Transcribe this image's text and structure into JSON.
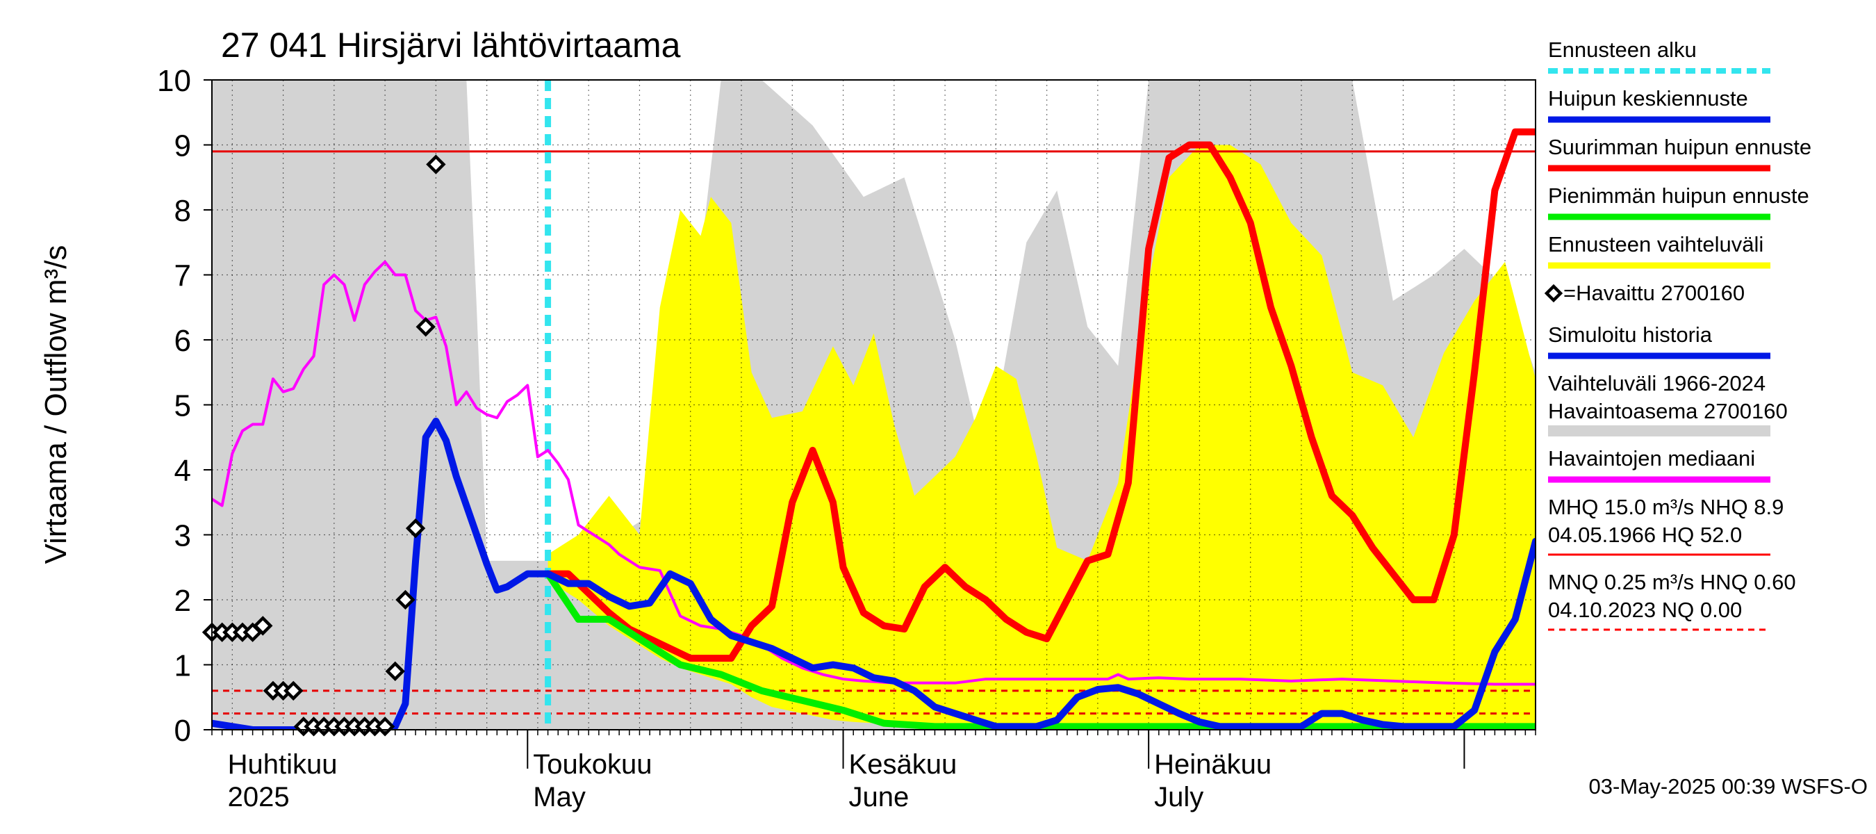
{
  "chart_data": {
    "type": "line",
    "title": "27 041 Hirsjärvi lähtövirtaama",
    "ylabel": "Virtaama / Outflow    m³/s",
    "ylim": [
      0,
      10
    ],
    "yticks": [
      "0",
      "1",
      "2",
      "3",
      "4",
      "5",
      "6",
      "7",
      "8",
      "9",
      "10"
    ],
    "xlim": [
      "2025-03-31",
      "2025-08-08"
    ],
    "month_labels": [
      {
        "date": "2025-04-01",
        "fi": "Huhtikuu",
        "en": "2025"
      },
      {
        "date": "2025-05-01",
        "fi": "Toukokuu",
        "en": "May"
      },
      {
        "date": "2025-06-01",
        "fi": "Kesäkuu",
        "en": "June"
      },
      {
        "date": "2025-07-01",
        "fi": "Heinäkuu",
        "en": "July"
      }
    ],
    "forecast_start": "2025-05-03",
    "reference_lines": {
      "nhq": 8.9,
      "mnq": 0.25,
      "hnq": 0.6
    },
    "grid": true,
    "legend_position": "right",
    "legend": [
      {
        "label": "Ennusteen alku",
        "color": "#33e5ee",
        "style": "dashed"
      },
      {
        "label": "Huipun keskiennuste",
        "color": "#0018e6",
        "style": "line"
      },
      {
        "label": "Suurimman huipun ennuste",
        "color": "#ff0000",
        "style": "line"
      },
      {
        "label": "Pienimmän huipun ennuste",
        "color": "#00ee00",
        "style": "line"
      },
      {
        "label": "Ennusteen vaihteluväli",
        "color": "#ffff00",
        "style": "line"
      },
      {
        "label": "=Havaittu 2700160",
        "color": "#000000",
        "style": "diamond"
      },
      {
        "label": "Simuloitu historia",
        "color": "#0018e6",
        "style": "line"
      },
      {
        "label": "Vaihteluväli 1966-2024",
        "label2": " Havaintoasema 2700160",
        "color": "#d3d3d3",
        "style": "band"
      },
      {
        "label": "Havaintojen mediaani",
        "color": "#ff00ff",
        "style": "line"
      },
      {
        "label": "MHQ 15.0 m³/s NHQ  8.9",
        "label2": "04.05.1966 HQ 52.0",
        "color": "#ff0000",
        "style": "thin"
      },
      {
        "label": "MNQ 0.25 m³/s HNQ 0.60",
        "label2": "04.10.2023 NQ 0.00",
        "color": "#ff0000",
        "style": "dotted"
      }
    ],
    "footer": "03-May-2025 00:39 WSFS-O",
    "series": [
      {
        "name": "Vaihteluväli 1966-2024",
        "kind": "band",
        "x": [
          "2025-03-31",
          "2025-04-04",
          "2025-04-25",
          "2025-04-26",
          "2025-04-27",
          "2025-05-03",
          "2025-05-08",
          "2025-05-12",
          "2025-05-16",
          "2025-05-20",
          "2025-05-24",
          "2025-05-29",
          "2025-06-03",
          "2025-06-07",
          "2025-06-09",
          "2025-06-12",
          "2025-06-15",
          "2025-06-19",
          "2025-06-22",
          "2025-06-25",
          "2025-06-28",
          "2025-07-01",
          "2025-07-05",
          "2025-07-09",
          "2025-07-13",
          "2025-07-17",
          "2025-07-21",
          "2025-07-25",
          "2025-07-29",
          "2025-08-01",
          "2025-08-05",
          "2025-08-08"
        ],
        "low": [
          0,
          0,
          0,
          0,
          0,
          0,
          0,
          0,
          0,
          0,
          0,
          0,
          0,
          0,
          0,
          0,
          0,
          0,
          0,
          0,
          0,
          0,
          0,
          0,
          0,
          0,
          0,
          0,
          0,
          0,
          0,
          0
        ],
        "high": [
          10,
          10,
          10,
          6.5,
          2.6,
          2.6,
          2.8,
          3.2,
          4.6,
          10,
          10,
          9.3,
          8.2,
          8.5,
          7.5,
          6.0,
          4.0,
          7.5,
          8.3,
          6.2,
          5.6,
          10,
          10,
          10,
          10,
          10,
          10,
          6.6,
          7.0,
          7.4,
          6.8,
          5.5
        ]
      },
      {
        "name": "Ennusteen vaihteluväli",
        "kind": "band",
        "x": [
          "2025-05-03",
          "2025-05-06",
          "2025-05-09",
          "2025-05-12",
          "2025-05-14",
          "2025-05-16",
          "2025-05-18",
          "2025-05-19",
          "2025-05-21",
          "2025-05-23",
          "2025-05-25",
          "2025-05-28",
          "2025-05-31",
          "2025-06-02",
          "2025-06-04",
          "2025-06-06",
          "2025-06-08",
          "2025-06-10",
          "2025-06-12",
          "2025-06-14",
          "2025-06-16",
          "2025-06-18",
          "2025-06-20",
          "2025-06-22",
          "2025-06-25",
          "2025-06-28",
          "2025-07-01",
          "2025-07-03",
          "2025-07-06",
          "2025-07-09",
          "2025-07-12",
          "2025-07-15",
          "2025-07-18",
          "2025-07-21",
          "2025-07-24",
          "2025-07-27",
          "2025-07-30",
          "2025-08-02",
          "2025-08-05",
          "2025-08-08"
        ],
        "low": [
          2.3,
          2.0,
          1.6,
          1.3,
          1.1,
          0.95,
          0.85,
          0.8,
          0.7,
          0.5,
          0.35,
          0.25,
          0.15,
          0.12,
          0.1,
          0.08,
          0.07,
          0.07,
          0.06,
          0.06,
          0.06,
          0.06,
          0.06,
          0.06,
          0.06,
          0.06,
          0.06,
          0.06,
          0.06,
          0.06,
          0.06,
          0.06,
          0.06,
          0.06,
          0.06,
          0.06,
          0.06,
          0.06,
          0.06,
          0.06
        ],
        "high": [
          2.7,
          3.0,
          3.6,
          3.0,
          6.5,
          8.0,
          7.6,
          8.2,
          7.8,
          5.5,
          4.8,
          4.9,
          5.9,
          5.3,
          6.1,
          4.7,
          3.6,
          3.9,
          4.2,
          4.8,
          5.6,
          5.4,
          4.2,
          2.8,
          2.6,
          3.8,
          6.9,
          8.5,
          9.0,
          9.0,
          8.7,
          7.8,
          7.3,
          5.5,
          5.3,
          4.5,
          5.8,
          6.6,
          7.2,
          5.4
        ]
      },
      {
        "name": "Havaintojen mediaani",
        "kind": "line",
        "x": [
          "2025-03-31",
          "2025-04-01",
          "2025-04-02",
          "2025-04-03",
          "2025-04-04",
          "2025-04-05",
          "2025-04-06",
          "2025-04-07",
          "2025-04-08",
          "2025-04-09",
          "2025-04-10",
          "2025-04-11",
          "2025-04-12",
          "2025-04-13",
          "2025-04-14",
          "2025-04-15",
          "2025-04-16",
          "2025-04-17",
          "2025-04-18",
          "2025-04-19",
          "2025-04-20",
          "2025-04-21",
          "2025-04-22",
          "2025-04-23",
          "2025-04-24",
          "2025-04-25",
          "2025-04-26",
          "2025-04-27",
          "2025-04-28",
          "2025-04-29",
          "2025-04-30",
          "2025-05-01",
          "2025-05-02",
          "2025-05-03",
          "2025-05-04",
          "2025-05-05",
          "2025-05-06",
          "2025-05-07",
          "2025-05-08",
          "2025-05-09",
          "2025-05-10",
          "2025-05-12",
          "2025-05-14",
          "2025-05-16",
          "2025-05-18",
          "2025-05-20",
          "2025-05-22",
          "2025-05-24",
          "2025-05-26",
          "2025-05-28",
          "2025-05-30",
          "2025-06-01",
          "2025-06-03",
          "2025-06-06",
          "2025-06-09",
          "2025-06-12",
          "2025-06-15",
          "2025-06-18",
          "2025-06-21",
          "2025-06-24",
          "2025-06-27",
          "2025-06-28",
          "2025-06-29",
          "2025-07-02",
          "2025-07-05",
          "2025-07-10",
          "2025-07-15",
          "2025-07-20",
          "2025-07-25",
          "2025-07-30",
          "2025-08-04",
          "2025-08-08"
        ],
        "y": [
          3.55,
          3.45,
          4.25,
          4.6,
          4.7,
          4.7,
          5.4,
          5.2,
          5.25,
          5.55,
          5.75,
          6.85,
          7.0,
          6.85,
          6.3,
          6.85,
          7.05,
          7.2,
          7.0,
          7.0,
          6.45,
          6.3,
          6.35,
          5.9,
          5.0,
          5.2,
          4.95,
          4.85,
          4.8,
          5.05,
          5.15,
          5.3,
          4.2,
          4.3,
          4.1,
          3.85,
          3.15,
          3.05,
          2.95,
          2.85,
          2.7,
          2.5,
          2.45,
          1.75,
          1.6,
          1.55,
          1.45,
          1.3,
          1.1,
          0.95,
          0.85,
          0.78,
          0.75,
          0.72,
          0.72,
          0.72,
          0.78,
          0.78,
          0.78,
          0.78,
          0.78,
          0.85,
          0.78,
          0.8,
          0.78,
          0.78,
          0.75,
          0.78,
          0.75,
          0.72,
          0.7,
          0.7
        ]
      },
      {
        "name": "Suurimman huipun ennuste",
        "kind": "line",
        "x": [
          "2025-05-03",
          "2025-05-05",
          "2025-05-07",
          "2025-05-09",
          "2025-05-11",
          "2025-05-13",
          "2025-05-15",
          "2025-05-17",
          "2025-05-19",
          "2025-05-21",
          "2025-05-23",
          "2025-05-25",
          "2025-05-27",
          "2025-05-29",
          "2025-05-31",
          "2025-06-01",
          "2025-06-03",
          "2025-06-05",
          "2025-06-07",
          "2025-06-09",
          "2025-06-11",
          "2025-06-13",
          "2025-06-15",
          "2025-06-17",
          "2025-06-19",
          "2025-06-21",
          "2025-06-23",
          "2025-06-25",
          "2025-06-27",
          "2025-06-29",
          "2025-07-01",
          "2025-07-03",
          "2025-07-05",
          "2025-07-07",
          "2025-07-09",
          "2025-07-11",
          "2025-07-13",
          "2025-07-15",
          "2025-07-17",
          "2025-07-19",
          "2025-07-21",
          "2025-07-23",
          "2025-07-25",
          "2025-07-27",
          "2025-07-29",
          "2025-07-31",
          "2025-08-02",
          "2025-08-04",
          "2025-08-06",
          "2025-08-08"
        ],
        "y": [
          2.4,
          2.4,
          2.1,
          1.8,
          1.55,
          1.4,
          1.25,
          1.1,
          1.1,
          1.1,
          1.6,
          1.9,
          3.5,
          4.3,
          3.5,
          2.5,
          1.8,
          1.6,
          1.55,
          2.2,
          2.5,
          2.2,
          2.0,
          1.7,
          1.5,
          1.4,
          2.0,
          2.6,
          2.7,
          3.8,
          7.4,
          8.8,
          9.0,
          9.0,
          8.5,
          7.8,
          6.5,
          5.6,
          4.5,
          3.6,
          3.3,
          2.8,
          2.4,
          2.0,
          2.0,
          3.0,
          5.5,
          8.3,
          9.2,
          9.2
        ]
      },
      {
        "name": "Pienimmän huipun ennuste",
        "kind": "line",
        "x": [
          "2025-05-03",
          "2025-05-06",
          "2025-05-09",
          "2025-05-12",
          "2025-05-16",
          "2025-05-20",
          "2025-05-24",
          "2025-05-28",
          "2025-06-01",
          "2025-06-05",
          "2025-06-10",
          "2025-06-20",
          "2025-07-01",
          "2025-07-15",
          "2025-08-01",
          "2025-08-08"
        ],
        "y": [
          2.4,
          1.7,
          1.7,
          1.4,
          1.0,
          0.85,
          0.6,
          0.45,
          0.3,
          0.1,
          0.05,
          0.05,
          0.05,
          0.05,
          0.05,
          0.05
        ]
      },
      {
        "name": "Huipun keskiennuste",
        "kind": "line",
        "x": [
          "2025-05-03",
          "2025-05-05",
          "2025-05-07",
          "2025-05-09",
          "2025-05-11",
          "2025-05-13",
          "2025-05-15",
          "2025-05-17",
          "2025-05-19",
          "2025-05-21",
          "2025-05-23",
          "2025-05-25",
          "2025-05-27",
          "2025-05-29",
          "2025-05-31",
          "2025-06-02",
          "2025-06-04",
          "2025-06-06",
          "2025-06-08",
          "2025-06-10",
          "2025-06-12",
          "2025-06-14",
          "2025-06-16",
          "2025-06-18",
          "2025-06-20",
          "2025-06-22",
          "2025-06-24",
          "2025-06-26",
          "2025-06-28",
          "2025-06-30",
          "2025-07-02",
          "2025-07-04",
          "2025-07-06",
          "2025-07-08",
          "2025-07-10",
          "2025-07-12",
          "2025-07-14",
          "2025-07-16",
          "2025-07-18",
          "2025-07-20",
          "2025-07-22",
          "2025-07-24",
          "2025-07-26",
          "2025-07-28",
          "2025-07-30",
          "2025-07-31",
          "2025-08-02",
          "2025-08-04",
          "2025-08-06",
          "2025-08-08"
        ],
        "y": [
          2.4,
          2.25,
          2.25,
          2.05,
          1.9,
          1.95,
          2.4,
          2.25,
          1.7,
          1.45,
          1.35,
          1.25,
          1.1,
          0.95,
          1.0,
          0.95,
          0.8,
          0.75,
          0.6,
          0.35,
          0.25,
          0.15,
          0.05,
          0.05,
          0.05,
          0.15,
          0.5,
          0.62,
          0.65,
          0.55,
          0.4,
          0.25,
          0.12,
          0.05,
          0.05,
          0.05,
          0.05,
          0.05,
          0.25,
          0.25,
          0.15,
          0.08,
          0.05,
          0.05,
          0.05,
          0.05,
          0.3,
          1.2,
          1.7,
          2.9
        ]
      },
      {
        "name": "Simuloitu historia",
        "kind": "line",
        "x": [
          "2025-03-31",
          "2025-04-02",
          "2025-04-04",
          "2025-04-08",
          "2025-04-12",
          "2025-04-16",
          "2025-04-17",
          "2025-04-18",
          "2025-04-19",
          "2025-04-20",
          "2025-04-21",
          "2025-04-22",
          "2025-04-23",
          "2025-04-24",
          "2025-04-25",
          "2025-04-26",
          "2025-04-27",
          "2025-04-28",
          "2025-04-29",
          "2025-04-30",
          "2025-05-01",
          "2025-05-02",
          "2025-05-03"
        ],
        "y": [
          0.1,
          0.05,
          0.0,
          0.0,
          0.0,
          0.0,
          0.0,
          0.05,
          0.4,
          2.6,
          4.5,
          4.75,
          4.45,
          3.9,
          3.45,
          3.0,
          2.55,
          2.15,
          2.2,
          2.3,
          2.4,
          2.4,
          2.4
        ]
      },
      {
        "name": "Havaittu 2700160",
        "kind": "scatter",
        "x": [
          "2025-03-31",
          "2025-04-01",
          "2025-04-02",
          "2025-04-03",
          "2025-04-04",
          "2025-04-05",
          "2025-04-06",
          "2025-04-07",
          "2025-04-08",
          "2025-04-09",
          "2025-04-10",
          "2025-04-11",
          "2025-04-12",
          "2025-04-13",
          "2025-04-14",
          "2025-04-15",
          "2025-04-16",
          "2025-04-17",
          "2025-04-18",
          "2025-04-19",
          "2025-04-20",
          "2025-04-21",
          "2025-04-22"
        ],
        "y": [
          1.5,
          1.5,
          1.5,
          1.5,
          1.5,
          1.6,
          0.6,
          0.6,
          0.6,
          0.05,
          0.05,
          0.05,
          0.05,
          0.05,
          0.05,
          0.05,
          0.05,
          0.05,
          0.9,
          2.0,
          3.1,
          6.2,
          8.7
        ]
      }
    ]
  }
}
